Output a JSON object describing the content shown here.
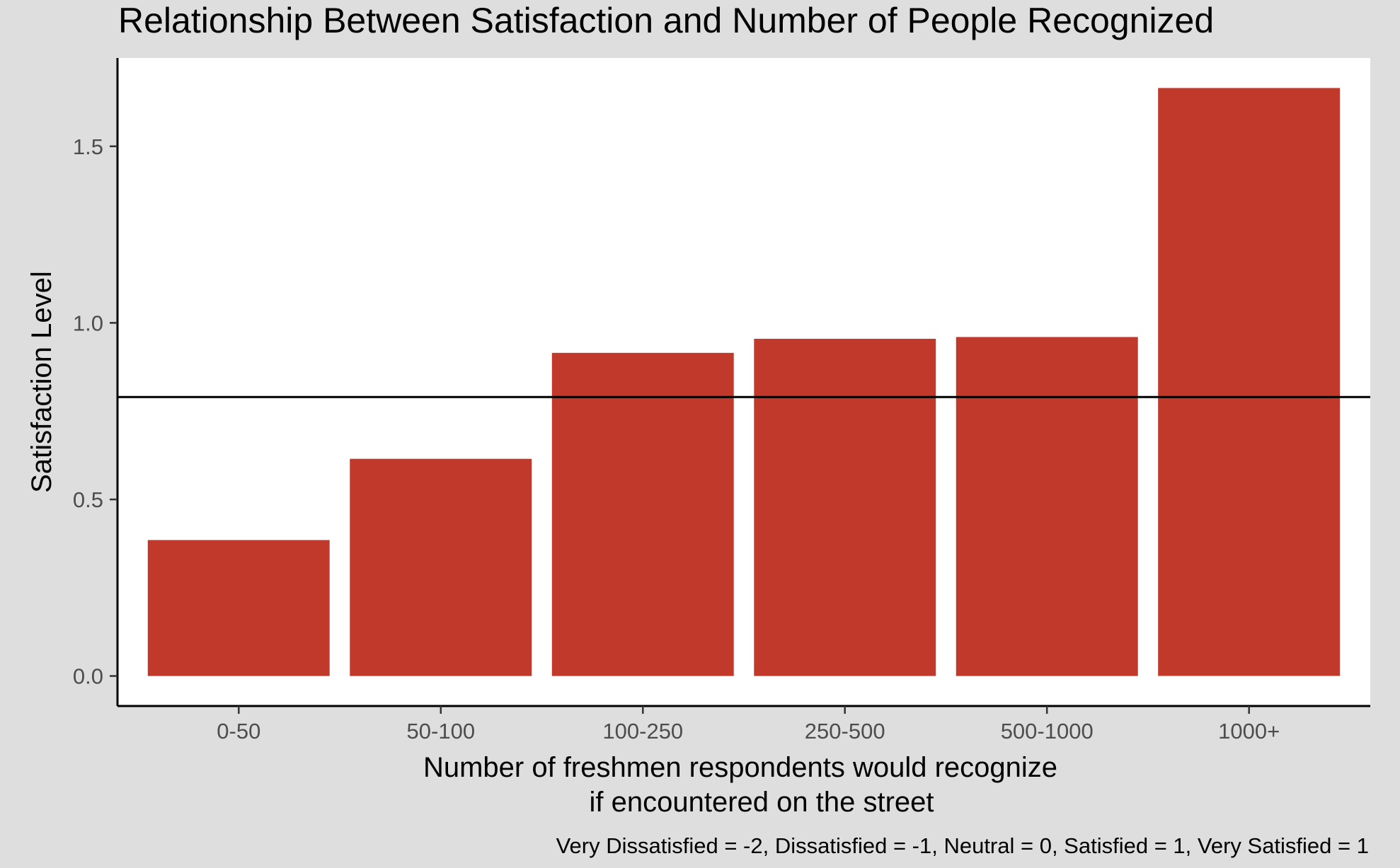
{
  "chart_data": {
    "type": "bar",
    "title": "Relationship Between Satisfaction and Number of People Recognized",
    "xlabel_lines": [
      "Number of freshmen respondents would recognize",
      "if encountered on the street"
    ],
    "ylabel": "Satisfaction Level",
    "caption": "Very Dissatisfied = -2, Dissatisfied = -1, Neutral = 0, Satisfied = 1, Very Satisfied = 1",
    "categories": [
      "0-50",
      "50-100",
      "100-250",
      "250-500",
      "500-1000",
      "1000+"
    ],
    "values": [
      0.385,
      0.615,
      0.915,
      0.955,
      0.96,
      1.665
    ],
    "reference_line": 0.79,
    "ylim": [
      -0.085,
      1.75
    ],
    "yticks": [
      0.0,
      0.5,
      1.0,
      1.5
    ],
    "ytick_labels": [
      "0.0",
      "0.5",
      "1.0",
      "1.5"
    ],
    "grid": false,
    "legend": "none",
    "colors": {
      "bar": "#c0392b",
      "panel": "#ffffff",
      "background": "#dedede",
      "axis": "#000000",
      "tick_text": "#4d4d4d",
      "label_text": "#000000"
    }
  }
}
